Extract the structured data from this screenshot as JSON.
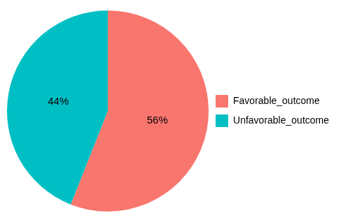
{
  "chart_data": {
    "type": "pie",
    "categories": [
      "Favorable_outcome",
      "Unfavorable_outcome"
    ],
    "values": [
      56,
      44
    ],
    "value_labels": [
      "56%",
      "44%"
    ],
    "colors": [
      "#F8766D",
      "#00BFC4"
    ],
    "data_labels": true,
    "legend": "right"
  }
}
